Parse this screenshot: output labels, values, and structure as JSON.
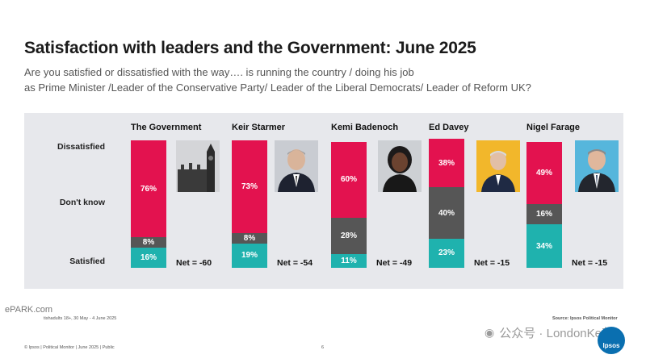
{
  "title": "Satisfaction with leaders and the Government: June 2025",
  "subtitle_line1": "Are you satisfied or dissatisfied with the way…. is running the country / doing his job",
  "subtitle_line2": "as Prime Minister /Leader of the Conservative Party/ Leader of the Liberal Democrats/ Leader of Reform UK?",
  "row_labels": {
    "dissatisfied": "Dissatisfied",
    "dont_know": "Don't know",
    "satisfied": "Satisfied"
  },
  "colors": {
    "dissatisfied": "#e3124f",
    "dont_know": "#565656",
    "satisfied": "#1fb2ae",
    "panel": "#e7e8ec"
  },
  "chart_data": {
    "type": "bar",
    "stacked": true,
    "categories": [
      "The Government",
      "Keir Starmer",
      "Kemi Badenoch",
      "Ed Davey",
      "Nigel Farage"
    ],
    "series": [
      {
        "name": "Satisfied",
        "values": [
          16,
          19,
          11,
          23,
          34
        ]
      },
      {
        "name": "Don't know",
        "values": [
          8,
          8,
          28,
          40,
          16
        ]
      },
      {
        "name": "Dissatisfied",
        "values": [
          76,
          73,
          60,
          38,
          49
        ]
      }
    ],
    "net_labels": [
      "Net = -60",
      "Net = -54",
      "Net = -49",
      "Net = -15",
      "Net = -15"
    ],
    "value_labels": {
      "satisfied": [
        "16%",
        "19%",
        "11%",
        "23%",
        "34%"
      ],
      "dont_know": [
        "8%",
        "8%",
        "28%",
        "40%",
        "16%"
      ],
      "dissatisfied": [
        "76%",
        "73%",
        "60%",
        "38%",
        "49%"
      ]
    },
    "ylim": [
      0,
      100
    ],
    "legend": "row labels on left",
    "grid": false
  },
  "photos": [
    "big-ben-icon",
    "keir-starmer-photo",
    "kemi-badenoch-photo",
    "ed-davey-photo",
    "nigel-farage-photo"
  ],
  "footer": {
    "base": "tishadults 18+, 30 May - 4 June 2025",
    "source": "Source: Ipsos Political Monitor",
    "copyright": "© Ipsos | Political Monitor | June 2025 | Public",
    "page": "6"
  },
  "watermark": {
    "top_left": "ePARK.com",
    "right": "公众号 · LondonKe英",
    "logo": "Ipsos"
  }
}
